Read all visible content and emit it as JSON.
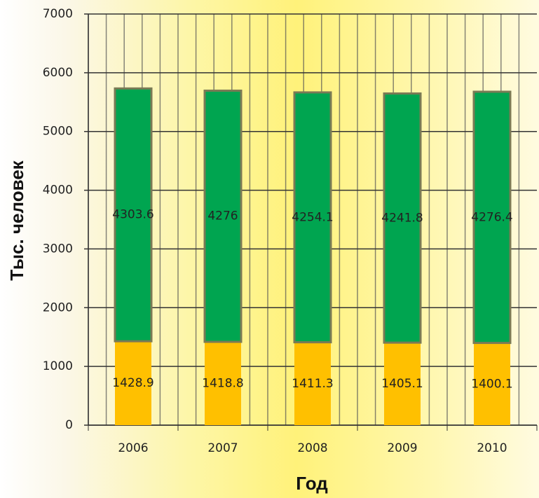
{
  "chart_data": {
    "type": "stacked_bar",
    "y_label": "Тыс. человек",
    "x_label": "Год",
    "categories": [
      "2006",
      "2007",
      "2008",
      "2009",
      "2010"
    ],
    "series": [
      {
        "color": "#ffc000",
        "values": [
          1428.9,
          1418.8,
          1411.3,
          1405.1,
          1400.1
        ]
      },
      {
        "color": "#00a550",
        "values": [
          4303.6,
          4276,
          4254.1,
          4241.8,
          4276.4
        ]
      }
    ],
    "ylim": [
      0,
      7000
    ],
    "yticks": [
      0,
      1000,
      2000,
      3000,
      4000,
      5000,
      6000,
      7000
    ],
    "grid": true
  }
}
